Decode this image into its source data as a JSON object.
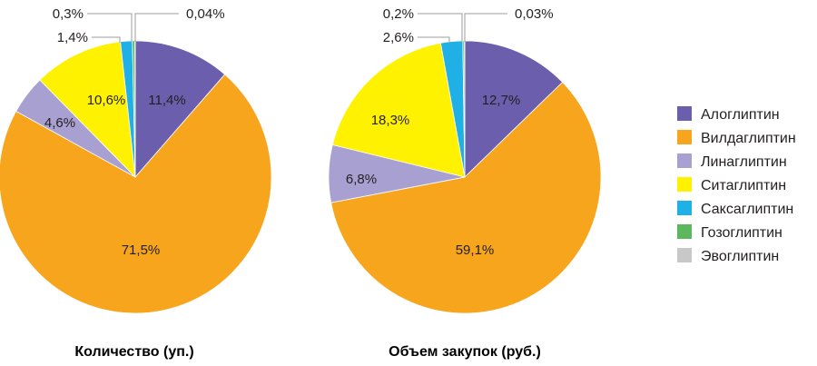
{
  "chart_data": [
    {
      "type": "pie",
      "title": "Количество (уп.)",
      "slices": [
        {
          "label": "Алоглиптин",
          "value": 11.4,
          "display": "11,4%"
        },
        {
          "label": "Вилдаглиптин",
          "value": 71.5,
          "display": "71,5%"
        },
        {
          "label": "Линаглиптин",
          "value": 4.6,
          "display": "4,6%"
        },
        {
          "label": "Ситаглиптин",
          "value": 10.6,
          "display": "10,6%"
        },
        {
          "label": "Саксаглиптин",
          "value": 1.4,
          "display": "1,4%"
        },
        {
          "label": "Гозоглиптин",
          "value": 0.3,
          "display": "0,3%"
        },
        {
          "label": "Эвоглиптин",
          "value": 0.04,
          "display": "0,04%"
        }
      ]
    },
    {
      "type": "pie",
      "title": "Объем закупок (руб.)",
      "slices": [
        {
          "label": "Алоглиптин",
          "value": 12.7,
          "display": "12,7%"
        },
        {
          "label": "Вилдаглиптин",
          "value": 59.1,
          "display": "59,1%"
        },
        {
          "label": "Линаглиптин",
          "value": 6.8,
          "display": "6,8%"
        },
        {
          "label": "Ситаглиптин",
          "value": 18.3,
          "display": "18,3%"
        },
        {
          "label": "Саксаглиптин",
          "value": 2.6,
          "display": "2,6%"
        },
        {
          "label": "Гозоглиптин",
          "value": 0.2,
          "display": "0,2%"
        },
        {
          "label": "Эвоглиптин",
          "value": 0.03,
          "display": "0,03%"
        }
      ]
    }
  ],
  "legend": {
    "placement": "right",
    "items": [
      {
        "label": "Алоглиптин",
        "color": "#6b5fad"
      },
      {
        "label": "Вилдаглиптин",
        "color": "#f7a51c"
      },
      {
        "label": "Линаглиптин",
        "color": "#a9a0d2"
      },
      {
        "label": "Ситаглиптин",
        "color": "#fff200"
      },
      {
        "label": "Саксаглиптин",
        "color": "#1fb0e6"
      },
      {
        "label": "Гозоглиптин",
        "color": "#5cb85c"
      },
      {
        "label": "Эвоглиптин",
        "color": "#c8c8c8"
      }
    ]
  }
}
